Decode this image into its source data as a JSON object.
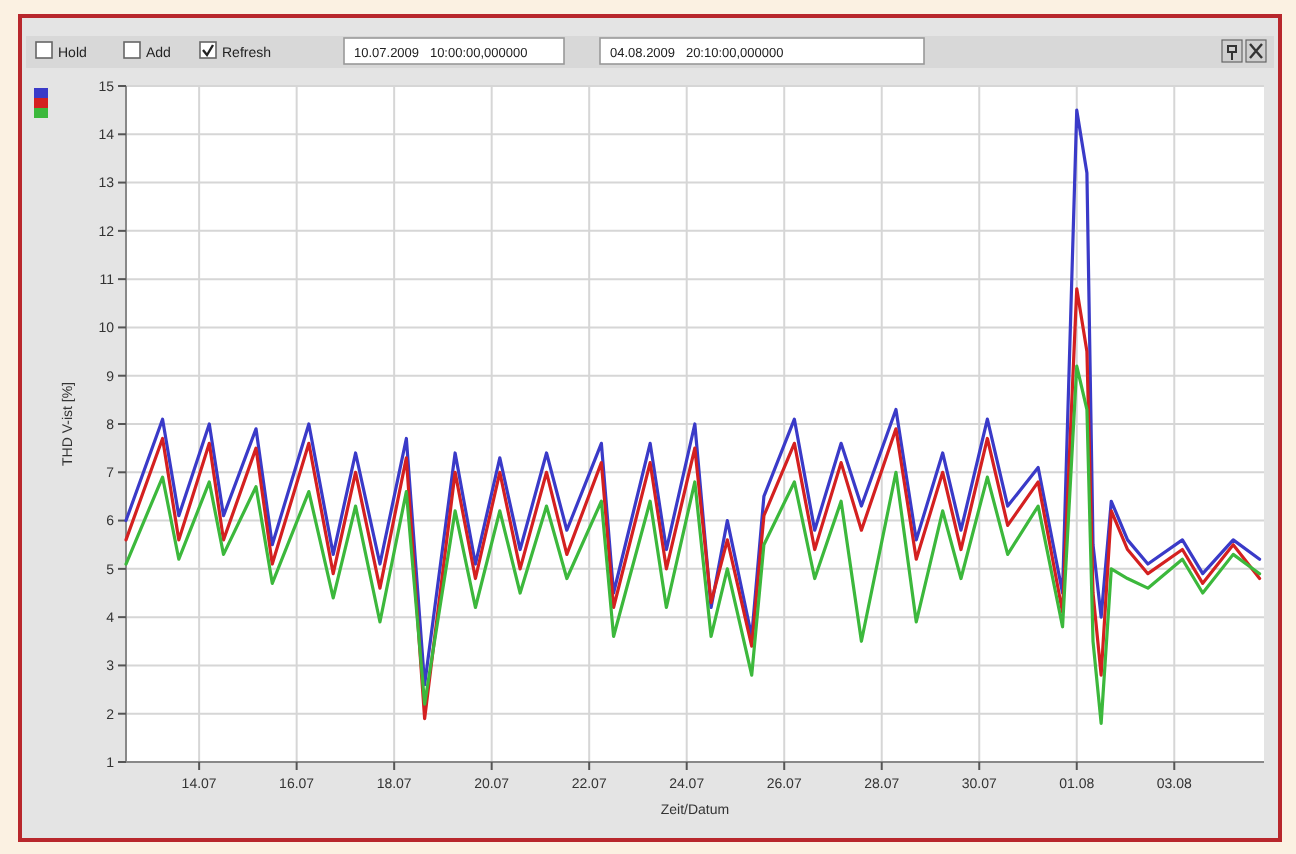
{
  "chart_data": {
    "type": "line",
    "xlabel": "Zeit/Datum",
    "ylabel": "THD V-ist [%]",
    "annotations": [
      "Hold",
      "Add",
      "Refresh",
      "10.07.2009   10:00:00,000000",
      "04.08.2009   20:10:00,000000"
    ],
    "x": [
      "2009-07-12T12:00",
      "2009-07-13T06:00",
      "2009-07-13T14:00",
      "2009-07-14T05:00",
      "2009-07-14T12:00",
      "2009-07-15T04:00",
      "2009-07-15T12:00",
      "2009-07-16T06:00",
      "2009-07-16T18:00",
      "2009-07-17T05:00",
      "2009-07-17T17:00",
      "2009-07-18T06:00",
      "2009-07-18T15:00",
      "2009-07-19T06:00",
      "2009-07-19T16:00",
      "2009-07-20T04:00",
      "2009-07-20T14:00",
      "2009-07-21T03:00",
      "2009-07-21T13:00",
      "2009-07-22T06:00",
      "2009-07-22T12:00",
      "2009-07-23T06:00",
      "2009-07-23T14:00",
      "2009-07-24T04:00",
      "2009-07-24T12:00",
      "2009-07-24T20:00",
      "2009-07-25T08:00",
      "2009-07-25T14:00",
      "2009-07-26T05:00",
      "2009-07-26T15:00",
      "2009-07-27T04:00",
      "2009-07-27T14:00",
      "2009-07-28T07:00",
      "2009-07-28T17:00",
      "2009-07-29T06:00",
      "2009-07-29T15:00",
      "2009-07-30T04:00",
      "2009-07-30T14:00",
      "2009-07-31T05:00",
      "2009-07-31T17:00",
      "2009-08-01T00:00",
      "2009-08-01T05:00",
      "2009-08-01T08:00",
      "2009-08-01T12:00",
      "2009-08-01T17:00",
      "2009-08-02T01:00",
      "2009-08-02T11:00",
      "2009-08-03T04:00",
      "2009-08-03T14:00",
      "2009-08-04T05:00",
      "2009-08-04T18:00"
    ],
    "series": [
      {
        "color": "#3a3ac8",
        "values": [
          6.0,
          8.1,
          6.1,
          8.0,
          6.1,
          7.9,
          5.5,
          8.0,
          5.3,
          7.4,
          5.1,
          7.7,
          2.6,
          7.4,
          5.1,
          7.3,
          5.4,
          7.4,
          5.8,
          7.6,
          4.5,
          7.6,
          5.4,
          8.0,
          4.2,
          6.0,
          3.6,
          6.5,
          8.1,
          5.8,
          7.6,
          6.3,
          8.3,
          5.6,
          7.4,
          5.8,
          8.1,
          6.3,
          7.1,
          4.5,
          14.5,
          13.2,
          5.5,
          4.0,
          6.4,
          5.6,
          5.1,
          5.6,
          4.9,
          5.6,
          5.2
        ]
      },
      {
        "color": "#d42020",
        "values": [
          5.6,
          7.7,
          5.6,
          7.6,
          5.6,
          7.5,
          5.1,
          7.6,
          4.9,
          7.0,
          4.6,
          7.3,
          1.9,
          7.0,
          4.8,
          7.0,
          5.0,
          7.0,
          5.3,
          7.2,
          4.2,
          7.2,
          5.0,
          7.5,
          4.3,
          5.6,
          3.4,
          6.1,
          7.6,
          5.4,
          7.2,
          5.8,
          7.9,
          5.2,
          7.0,
          5.4,
          7.7,
          5.9,
          6.8,
          4.1,
          10.8,
          9.5,
          4.5,
          2.8,
          6.2,
          5.4,
          4.9,
          5.4,
          4.7,
          5.5,
          4.8
        ]
      },
      {
        "color": "#3cb83c",
        "values": [
          5.1,
          6.9,
          5.2,
          6.8,
          5.3,
          6.7,
          4.7,
          6.6,
          4.4,
          6.3,
          3.9,
          6.6,
          2.2,
          6.2,
          4.2,
          6.2,
          4.5,
          6.3,
          4.8,
          6.4,
          3.6,
          6.4,
          4.2,
          6.8,
          3.6,
          5.0,
          2.8,
          5.5,
          6.8,
          4.8,
          6.4,
          3.5,
          7.0,
          3.9,
          6.2,
          4.8,
          6.9,
          5.3,
          6.3,
          3.8,
          9.2,
          8.3,
          3.5,
          1.8,
          5.0,
          4.8,
          4.6,
          5.2,
          4.5,
          5.3,
          4.9
        ]
      }
    ],
    "xlim": [
      "2009-07-12T12:00",
      "2009-08-04T20:10"
    ],
    "xticks": [
      {
        "value": "2009-07-14",
        "label": "14.07"
      },
      {
        "value": "2009-07-16",
        "label": "16.07"
      },
      {
        "value": "2009-07-18",
        "label": "18.07"
      },
      {
        "value": "2009-07-20",
        "label": "20.07"
      },
      {
        "value": "2009-07-22",
        "label": "22.07"
      },
      {
        "value": "2009-07-24",
        "label": "24.07"
      },
      {
        "value": "2009-07-26",
        "label": "26.07"
      },
      {
        "value": "2009-07-28",
        "label": "28.07"
      },
      {
        "value": "2009-07-30",
        "label": "30.07"
      },
      {
        "value": "2009-08-01",
        "label": "01.08"
      },
      {
        "value": "2009-08-03",
        "label": "03.08"
      }
    ],
    "ylim": [
      1,
      15
    ],
    "yticks": [
      1,
      2,
      3,
      4,
      5,
      6,
      7,
      8,
      9,
      10,
      11,
      12,
      13,
      14,
      15
    ],
    "grid": true,
    "marker": "none",
    "line_style": "solid"
  }
}
